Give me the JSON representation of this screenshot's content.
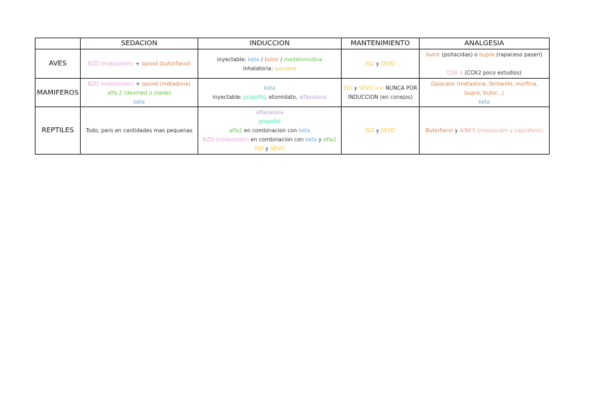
{
  "colors": {
    "dark": "#333333",
    "pink": "#e6a2dc",
    "orange": "#d6824a",
    "blue": "#6fa8dc",
    "green": "#6cbf4a",
    "yellow": "#f4c430",
    "teal": "#3ee0b0",
    "purple": "#b39bd6",
    "salmon": "#f3a0a0"
  },
  "headers": [
    "",
    "SEDACION",
    "INDUCCION",
    "MANTENIMIENTO",
    "ANALGESIA"
  ],
  "rows": [
    {
      "label": "AVES",
      "cells": [
        [
          [
            [
              "BZD (midazolam)",
              "pink"
            ],
            [
              " + ",
              "dark"
            ],
            [
              "opioid (butorfanol)",
              "orange"
            ]
          ]
        ],
        [
          [
            [
              "inyectable: ",
              "dark"
            ],
            [
              "keta",
              "blue"
            ],
            [
              " / ",
              "dark"
            ],
            [
              "butor",
              "orange"
            ],
            [
              " / ",
              "dark"
            ],
            [
              "medetomidina",
              "green"
            ]
          ],
          [
            [
              "inhalatoria: ",
              "dark"
            ],
            [
              "iso/sevo",
              "yellow"
            ]
          ]
        ],
        [
          [
            [
              "ISO",
              "yellow"
            ],
            [
              " y ",
              "dark"
            ],
            [
              "SEVO",
              "yellow"
            ]
          ]
        ],
        [
          [
            [
              "butor",
              "orange"
            ],
            [
              " (psitacidas) o ",
              "dark"
            ],
            [
              "bupre",
              "orange"
            ],
            [
              " (rapaceso paseri)",
              "dark"
            ]
          ],
          [
            [
              "",
              ""
            ]
          ],
          [
            [
              "COX 1",
              "salmon"
            ],
            [
              " (COX2 poco estudios)",
              "dark"
            ]
          ]
        ]
      ]
    },
    {
      "label": "MAMIFEROS",
      "cells": [
        [
          [
            [
              "BZD (midazolam)",
              "pink"
            ],
            [
              " + ",
              "dark"
            ],
            [
              "opioid (metadona)",
              "orange"
            ]
          ],
          [
            [
              "alfa 2 (dexmed o mede)",
              "green"
            ]
          ],
          [
            [
              "keta",
              "blue"
            ]
          ]
        ],
        [
          [
            [
              "keta",
              "blue"
            ]
          ],
          [
            [
              "inyectable: ",
              "dark"
            ],
            [
              "propofol",
              "teal"
            ],
            [
              ", etomidato, ",
              "dark"
            ],
            [
              "alfaxalona",
              "purple"
            ]
          ]
        ],
        [
          [
            [
              "ISO",
              "yellow"
            ],
            [
              " y ",
              "dark"
            ],
            [
              "SEVO =>",
              "yellow"
            ],
            [
              " NUNCA POR",
              "dark"
            ]
          ],
          [
            [
              "INDUCCION (en conejos)",
              "dark"
            ]
          ]
        ],
        [
          [
            [
              "Opiaceos (metadona, fentanilo, morfina,",
              "orange"
            ]
          ],
          [
            [
              "bupre, butor...)",
              "orange"
            ]
          ],
          [
            [
              "keta",
              "blue"
            ]
          ]
        ]
      ]
    },
    {
      "label": "REPTILES",
      "cells": [
        [
          [
            [
              "Todo, pero en cantidades mas pequenas",
              "dark"
            ]
          ]
        ],
        [
          [
            [
              "alfaxalona",
              "purple"
            ]
          ],
          [
            [
              "propofol",
              "teal"
            ]
          ],
          [
            [
              "alfa2",
              "green"
            ],
            [
              " en combinacion con ",
              "dark"
            ],
            [
              "keta",
              "blue"
            ]
          ],
          [
            [
              "BZD (midazolam)",
              "pink"
            ],
            [
              " en combinacion con ",
              "dark"
            ],
            [
              "keta",
              "blue"
            ],
            [
              " y ",
              "dark"
            ],
            [
              "afla2",
              "green"
            ]
          ],
          [
            [
              "ISO",
              "yellow"
            ],
            [
              " y ",
              "dark"
            ],
            [
              "SEVO",
              "yellow"
            ]
          ]
        ],
        [
          [
            [
              "ISO",
              "yellow"
            ],
            [
              " y ",
              "dark"
            ],
            [
              "SEVO",
              "yellow"
            ]
          ]
        ],
        [
          [
            [
              "Butorfanol",
              "orange"
            ],
            [
              " y ",
              "dark"
            ],
            [
              "AINES (meloxicam y caprofeno)",
              "salmon"
            ]
          ]
        ]
      ]
    }
  ]
}
